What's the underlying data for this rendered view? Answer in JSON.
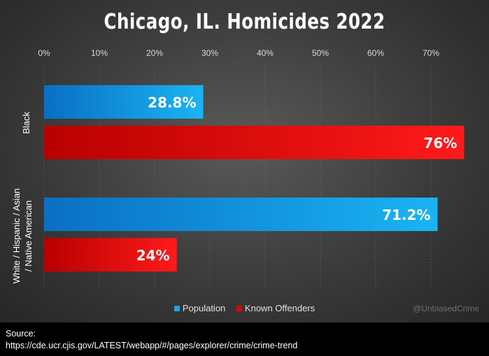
{
  "chart_data": {
    "type": "bar",
    "orientation": "horizontal",
    "title": "Chicago, IL. Homicides 2022",
    "categories": [
      "Black",
      "White / Hispanic / Asian / Native American"
    ],
    "category_lines": [
      [
        "Black"
      ],
      [
        "White / Hispanic / Asian",
        "/ Native American"
      ]
    ],
    "series": [
      {
        "name": "Population",
        "values": [
          28.8,
          71.2
        ],
        "labels": [
          "28.8%",
          "71.2%"
        ],
        "color": "#1aa3e8"
      },
      {
        "name": "Known Offenders",
        "values": [
          76,
          24
        ],
        "labels": [
          "76%",
          "24%"
        ],
        "color": "#e60000"
      }
    ],
    "xlim": [
      0,
      75
    ],
    "xticks": [
      0,
      10,
      20,
      30,
      40,
      50,
      60,
      70
    ],
    "xtick_labels": [
      "0%",
      "10%",
      "20%",
      "30%",
      "40%",
      "50%",
      "60%",
      "70%"
    ],
    "xaxis_position": "top",
    "grid": true,
    "legend_position": "bottom"
  },
  "watermark": "@UnbiasedCrime",
  "source": {
    "label": "Source:",
    "url": "https://cde.ucr.cjis.gov/LATEST/webapp/#/pages/explorer/crime/crime-trend"
  },
  "colors": {
    "population": "#1aa3e8",
    "offenders": "#e60000",
    "background": "#3b3b3b"
  }
}
